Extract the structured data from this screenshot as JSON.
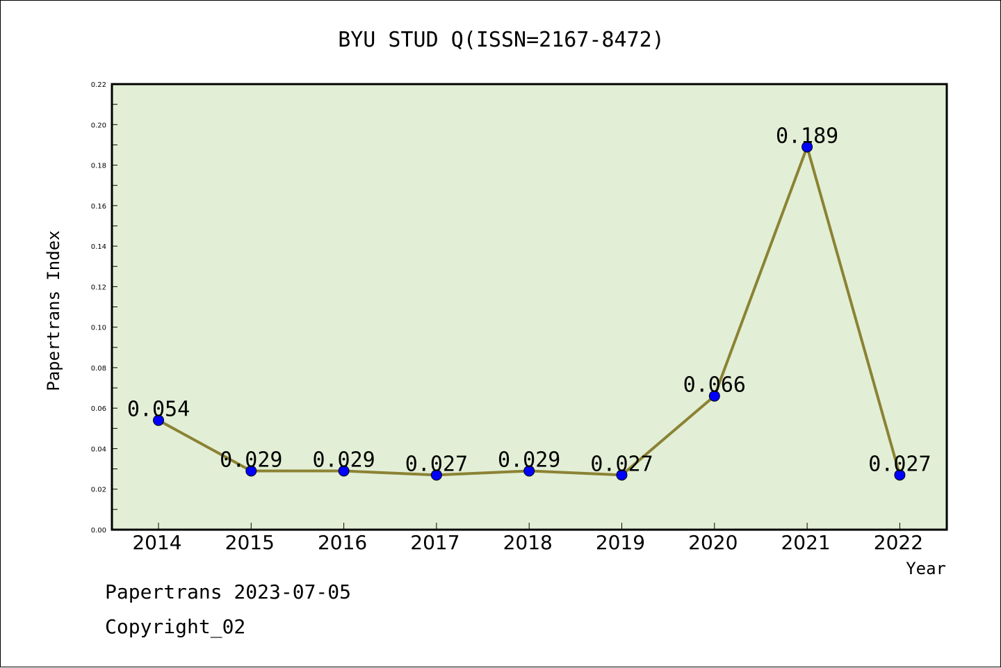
{
  "chart_data": {
    "type": "line",
    "title": "BYU STUD Q(ISSN=2167-8472)",
    "xlabel": "Year",
    "ylabel": "Papertrans Index",
    "categories": [
      "2014",
      "2015",
      "2016",
      "2017",
      "2018",
      "2019",
      "2020",
      "2021",
      "2022"
    ],
    "series": [
      {
        "values": [
          0.054,
          0.029,
          0.029,
          0.027,
          0.029,
          0.027,
          0.066,
          0.189,
          0.027
        ]
      }
    ],
    "data_labels": [
      "0.054",
      "0.029",
      "0.029",
      "0.027",
      "0.029",
      "0.027",
      "0.066",
      "0.189",
      "0.027"
    ],
    "ylim": [
      0,
      0.22
    ],
    "yticks": [
      "0.00",
      "0.02",
      "0.04",
      "0.06",
      "0.08",
      "0.10",
      "0.12",
      "0.14",
      "0.16",
      "0.18",
      "0.20",
      "0.22"
    ],
    "grid": false,
    "colors": {
      "plot_background": "#e2efd6",
      "line": "#8b8234",
      "marker": "#0000ff"
    }
  },
  "footer": {
    "line1": "Papertrans 2023-07-05",
    "line2": "Copyright_02"
  }
}
